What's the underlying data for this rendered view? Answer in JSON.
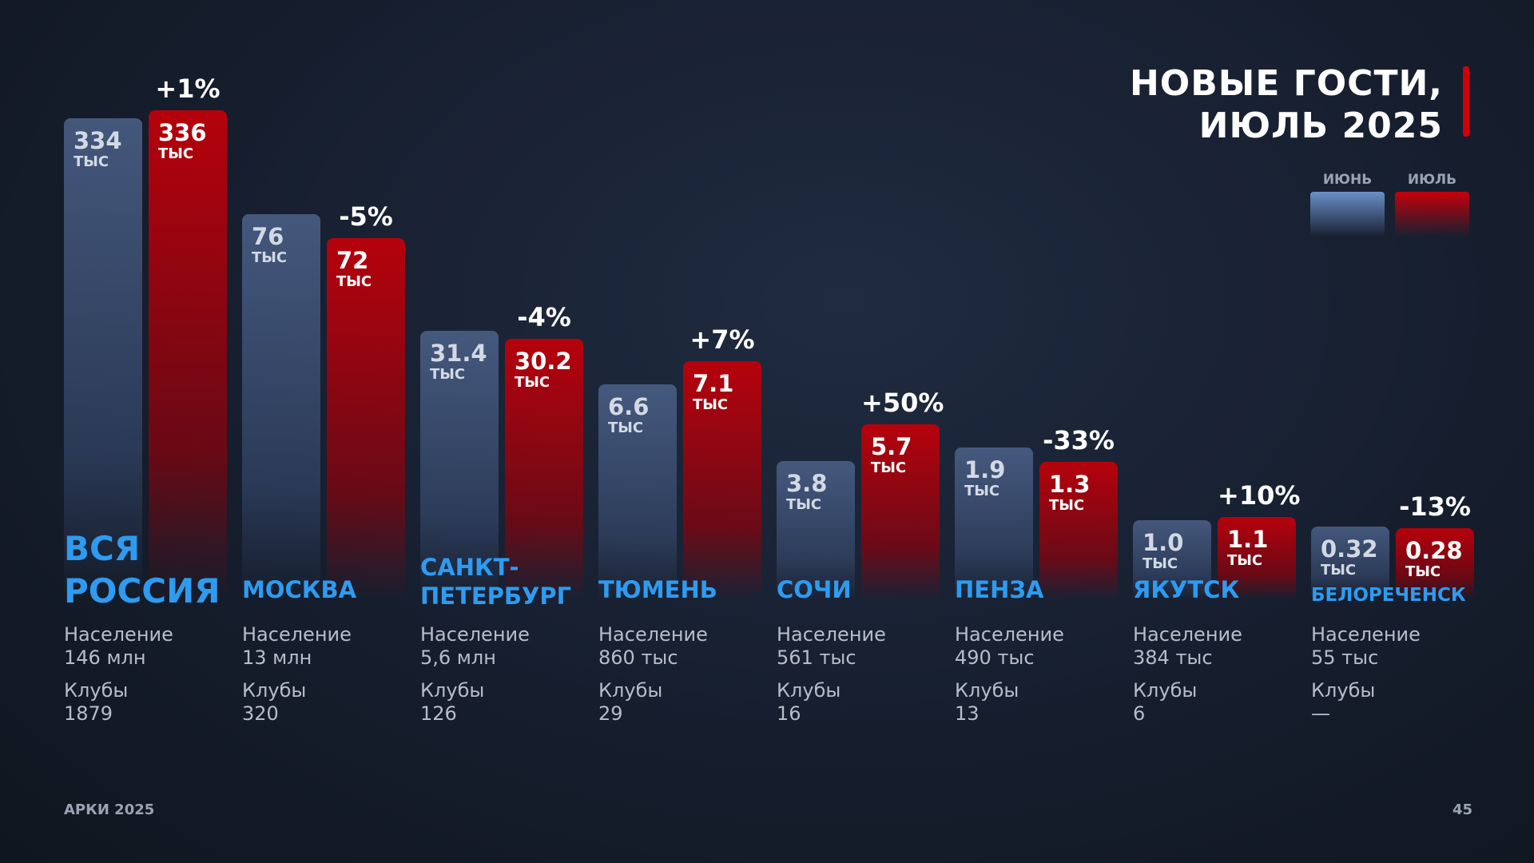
{
  "title_line1": "НОВЫЕ ГОСТИ,",
  "title_line2": "ИЮЛЬ 2025",
  "legend": {
    "june": "ИЮНЬ",
    "july": "ИЮЛЬ"
  },
  "footer": {
    "left": "АРКИ 2025",
    "page": "45"
  },
  "labels": {
    "population": "Население",
    "clubs": "Клубы",
    "unit": "ТЫС"
  },
  "colors": {
    "june": "#4c628a",
    "july": "#c4000a",
    "city": "#2e9bf0"
  },
  "chart_data": {
    "type": "bar",
    "title": "НОВЫЕ ГОСТИ, ИЮЛЬ 2025",
    "unit": "тыс",
    "legend": [
      "ИЮНЬ",
      "ИЮЛЬ"
    ],
    "legend_position": "top-right",
    "categories": [
      {
        "city": "ВСЯ РОССИЯ",
        "june": "334",
        "july": "336",
        "change": "+1%",
        "population": "146 млн",
        "clubs": "1879"
      },
      {
        "city": "МОСКВА",
        "june": "76",
        "july": "72",
        "change": "-5%",
        "population": "13 млн",
        "clubs": "320"
      },
      {
        "city": "САНКТ-ПЕТЕРБУРГ",
        "june": "31.4",
        "july": "30.2",
        "change": "-4%",
        "population": "5,6 млн",
        "clubs": "126"
      },
      {
        "city": "ТЮМЕНЬ",
        "june": "6.6",
        "july": "7.1",
        "change": "+7%",
        "population": "860 тыс",
        "clubs": "29"
      },
      {
        "city": "СОЧИ",
        "june": "3.8",
        "july": "5.7",
        "change": "+50%",
        "population": "561 тыс",
        "clubs": "16"
      },
      {
        "city": "ПЕНЗА",
        "june": "1.9",
        "july": "1.3",
        "change": "-33%",
        "population": "490 тыс",
        "clubs": "13"
      },
      {
        "city": "ЯКУТСК",
        "june": "1.0",
        "july": "1.1",
        "change": "+10%",
        "population": "384 тыс",
        "clubs": "6"
      },
      {
        "city": "БЕЛОРЕЧЕНСК",
        "june": "0.32",
        "july": "0.28",
        "change": "-13%",
        "population": "55 тыс",
        "clubs": "—"
      }
    ]
  }
}
